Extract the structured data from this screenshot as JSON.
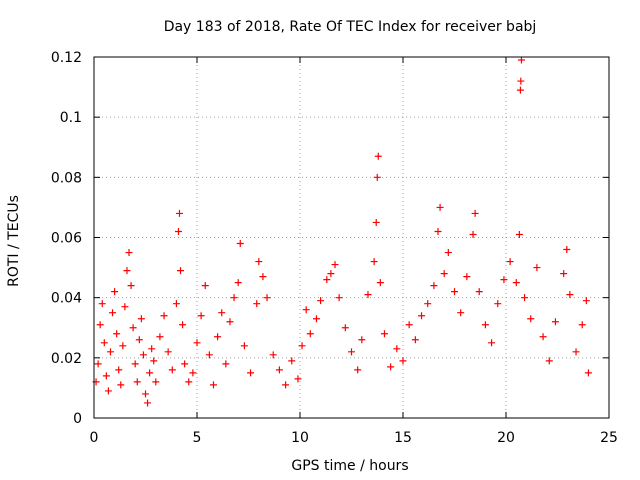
{
  "chart_data": {
    "type": "scatter",
    "title": "Day 183 of 2018, Rate Of TEC Index for receiver babj",
    "xlabel": "GPS time / hours",
    "ylabel": "ROTI / TECUs",
    "xlim": [
      0,
      25
    ],
    "ylim": [
      0,
      0.12
    ],
    "x_ticks": [
      0,
      5,
      10,
      15,
      20,
      25
    ],
    "x_tick_labels": [
      "0",
      "5",
      "10",
      "15",
      "20",
      "25"
    ],
    "y_ticks": [
      0,
      0.02,
      0.04,
      0.06,
      0.08,
      0.1,
      0.12
    ],
    "y_tick_labels": [
      "0",
      "0.02",
      "0.04",
      "0.06",
      "0.08",
      "0.1",
      "0.12"
    ],
    "grid": true,
    "marker": "plus",
    "color": "#ff0000",
    "series": [
      {
        "name": "ROTI",
        "description": "dense scatter of ROTI samples across 0-24 h; typical values 0.005-0.035 with bursts",
        "points": [
          [
            0.1,
            0.012
          ],
          [
            0.2,
            0.018
          ],
          [
            0.3,
            0.031
          ],
          [
            0.4,
            0.038
          ],
          [
            0.5,
            0.025
          ],
          [
            0.6,
            0.014
          ],
          [
            0.7,
            0.009
          ],
          [
            0.8,
            0.022
          ],
          [
            0.9,
            0.035
          ],
          [
            1.0,
            0.042
          ],
          [
            1.1,
            0.028
          ],
          [
            1.2,
            0.016
          ],
          [
            1.3,
            0.011
          ],
          [
            1.4,
            0.024
          ],
          [
            1.5,
            0.037
          ],
          [
            1.6,
            0.049
          ],
          [
            1.7,
            0.055
          ],
          [
            1.8,
            0.044
          ],
          [
            1.9,
            0.03
          ],
          [
            2.0,
            0.018
          ],
          [
            2.1,
            0.012
          ],
          [
            2.2,
            0.026
          ],
          [
            2.3,
            0.033
          ],
          [
            2.4,
            0.021
          ],
          [
            2.5,
            0.008
          ],
          [
            2.6,
            0.005
          ],
          [
            2.7,
            0.015
          ],
          [
            2.8,
            0.023
          ],
          [
            2.9,
            0.019
          ],
          [
            3.0,
            0.012
          ],
          [
            3.2,
            0.027
          ],
          [
            3.4,
            0.034
          ],
          [
            3.6,
            0.022
          ],
          [
            3.8,
            0.016
          ],
          [
            4.0,
            0.038
          ],
          [
            4.1,
            0.062
          ],
          [
            4.15,
            0.068
          ],
          [
            4.2,
            0.049
          ],
          [
            4.3,
            0.031
          ],
          [
            4.4,
            0.018
          ],
          [
            4.6,
            0.012
          ],
          [
            4.8,
            0.015
          ],
          [
            5.0,
            0.025
          ],
          [
            5.2,
            0.034
          ],
          [
            5.4,
            0.044
          ],
          [
            5.6,
            0.021
          ],
          [
            5.8,
            0.011
          ],
          [
            6.0,
            0.027
          ],
          [
            6.2,
            0.035
          ],
          [
            6.4,
            0.018
          ],
          [
            6.6,
            0.032
          ],
          [
            6.8,
            0.04
          ],
          [
            7.0,
            0.045
          ],
          [
            7.1,
            0.058
          ],
          [
            7.3,
            0.024
          ],
          [
            7.6,
            0.015
          ],
          [
            7.9,
            0.038
          ],
          [
            8.0,
            0.052
          ],
          [
            8.2,
            0.047
          ],
          [
            8.4,
            0.04
          ],
          [
            8.7,
            0.021
          ],
          [
            9.0,
            0.016
          ],
          [
            9.3,
            0.011
          ],
          [
            9.6,
            0.019
          ],
          [
            9.9,
            0.013
          ],
          [
            10.1,
            0.024
          ],
          [
            10.3,
            0.036
          ],
          [
            10.5,
            0.028
          ],
          [
            10.8,
            0.033
          ],
          [
            11.0,
            0.039
          ],
          [
            11.3,
            0.046
          ],
          [
            11.5,
            0.048
          ],
          [
            11.7,
            0.051
          ],
          [
            11.9,
            0.04
          ],
          [
            12.2,
            0.03
          ],
          [
            12.5,
            0.022
          ],
          [
            12.8,
            0.016
          ],
          [
            13.0,
            0.026
          ],
          [
            13.3,
            0.041
          ],
          [
            13.6,
            0.052
          ],
          [
            13.7,
            0.065
          ],
          [
            13.75,
            0.08
          ],
          [
            13.8,
            0.087
          ],
          [
            13.9,
            0.045
          ],
          [
            14.1,
            0.028
          ],
          [
            14.4,
            0.017
          ],
          [
            14.7,
            0.023
          ],
          [
            15.0,
            0.019
          ],
          [
            15.3,
            0.031
          ],
          [
            15.6,
            0.026
          ],
          [
            15.9,
            0.034
          ],
          [
            16.2,
            0.038
          ],
          [
            16.5,
            0.044
          ],
          [
            16.7,
            0.062
          ],
          [
            16.8,
            0.07
          ],
          [
            17.0,
            0.048
          ],
          [
            17.2,
            0.055
          ],
          [
            17.5,
            0.042
          ],
          [
            17.8,
            0.035
          ],
          [
            18.1,
            0.047
          ],
          [
            18.4,
            0.061
          ],
          [
            18.5,
            0.068
          ],
          [
            18.7,
            0.042
          ],
          [
            19.0,
            0.031
          ],
          [
            19.3,
            0.025
          ],
          [
            19.6,
            0.038
          ],
          [
            19.9,
            0.046
          ],
          [
            20.2,
            0.052
          ],
          [
            20.5,
            0.045
          ],
          [
            20.65,
            0.061
          ],
          [
            20.7,
            0.109
          ],
          [
            20.72,
            0.112
          ],
          [
            20.75,
            0.119
          ],
          [
            20.9,
            0.04
          ],
          [
            21.2,
            0.033
          ],
          [
            21.5,
            0.05
          ],
          [
            21.8,
            0.027
          ],
          [
            22.1,
            0.019
          ],
          [
            22.4,
            0.032
          ],
          [
            22.8,
            0.048
          ],
          [
            22.95,
            0.056
          ],
          [
            23.1,
            0.041
          ],
          [
            23.4,
            0.022
          ],
          [
            23.7,
            0.031
          ],
          [
            23.9,
            0.039
          ],
          [
            24.0,
            0.015
          ]
        ]
      }
    ]
  }
}
